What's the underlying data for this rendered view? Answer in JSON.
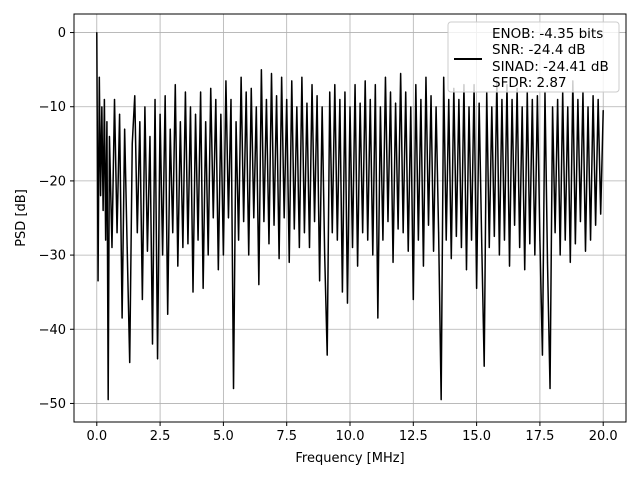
{
  "chart_data": {
    "type": "line",
    "xlabel": "Frequency [MHz]",
    "ylabel": "PSD [dB]",
    "xlim": [
      -0.9,
      20.9
    ],
    "ylim": [
      -52.5,
      2.5
    ],
    "x_ticks": [
      0.0,
      2.5,
      5.0,
      7.5,
      10.0,
      12.5,
      15.0,
      17.5,
      20.0
    ],
    "x_tick_labels": [
      "0.0",
      "2.5",
      "5.0",
      "7.5",
      "10.0",
      "12.5",
      "15.0",
      "17.5",
      "20.0"
    ],
    "y_ticks": [
      0,
      -10,
      -20,
      -30,
      -40,
      -50
    ],
    "y_tick_labels": [
      "0",
      "−10",
      "−20",
      "−30",
      "−40",
      "−50"
    ],
    "grid": true,
    "legend_position": "top-right",
    "series": [
      {
        "legend_lines": [
          "ENOB: -4.35 bits",
          "SNR: -24.4 dB",
          "SINAD: -24.41 dB",
          "SFDR: 2.87"
        ],
        "color": "#000000",
        "description": "noise-like PSD from 0 to 20 MHz, peak 0 dB at 0 MHz, mostly between -30 and -5 dB",
        "points": [
          [
            0.0,
            0.0
          ],
          [
            0.05,
            -33.5
          ],
          [
            0.1,
            -6.0
          ],
          [
            0.15,
            -22.0
          ],
          [
            0.2,
            -10.0
          ],
          [
            0.25,
            -24.0
          ],
          [
            0.3,
            -9.0
          ],
          [
            0.35,
            -28.0
          ],
          [
            0.4,
            -12.0
          ],
          [
            0.45,
            -49.5
          ],
          [
            0.5,
            -14.0
          ],
          [
            0.6,
            -29.0
          ],
          [
            0.7,
            -9.0
          ],
          [
            0.8,
            -27.0
          ],
          [
            0.9,
            -11.0
          ],
          [
            1.0,
            -38.5
          ],
          [
            1.1,
            -13.0
          ],
          [
            1.2,
            -29.0
          ],
          [
            1.3,
            -44.5
          ],
          [
            1.4,
            -15.0
          ],
          [
            1.5,
            -8.5
          ],
          [
            1.6,
            -27.0
          ],
          [
            1.7,
            -12.0
          ],
          [
            1.8,
            -36.0
          ],
          [
            1.9,
            -10.0
          ],
          [
            2.0,
            -29.5
          ],
          [
            2.1,
            -14.0
          ],
          [
            2.2,
            -42.0
          ],
          [
            2.3,
            -9.0
          ],
          [
            2.4,
            -44.0
          ],
          [
            2.5,
            -11.0
          ],
          [
            2.6,
            -30.0
          ],
          [
            2.7,
            -8.5
          ],
          [
            2.8,
            -38.0
          ],
          [
            2.9,
            -13.0
          ],
          [
            3.0,
            -27.0
          ],
          [
            3.1,
            -7.0
          ],
          [
            3.2,
            -31.5
          ],
          [
            3.3,
            -12.0
          ],
          [
            3.4,
            -29.0
          ],
          [
            3.5,
            -8.0
          ],
          [
            3.6,
            -28.5
          ],
          [
            3.7,
            -10.0
          ],
          [
            3.8,
            -35.0
          ],
          [
            3.9,
            -11.0
          ],
          [
            4.0,
            -28.0
          ],
          [
            4.1,
            -8.0
          ],
          [
            4.2,
            -34.5
          ],
          [
            4.3,
            -12.0
          ],
          [
            4.4,
            -30.0
          ],
          [
            4.5,
            -7.5
          ],
          [
            4.6,
            -25.0
          ],
          [
            4.7,
            -9.0
          ],
          [
            4.8,
            -32.0
          ],
          [
            4.9,
            -11.0
          ],
          [
            5.0,
            -30.0
          ],
          [
            5.1,
            -6.5
          ],
          [
            5.2,
            -25.0
          ],
          [
            5.3,
            -9.0
          ],
          [
            5.4,
            -48.0
          ],
          [
            5.5,
            -12.0
          ],
          [
            5.6,
            -28.0
          ],
          [
            5.7,
            -6.0
          ],
          [
            5.8,
            -25.5
          ],
          [
            5.9,
            -8.0
          ],
          [
            6.0,
            -30.0
          ],
          [
            6.1,
            -7.5
          ],
          [
            6.2,
            -25.0
          ],
          [
            6.3,
            -10.0
          ],
          [
            6.4,
            -34.0
          ],
          [
            6.5,
            -5.0
          ],
          [
            6.6,
            -25.5
          ],
          [
            6.7,
            -9.0
          ],
          [
            6.8,
            -28.5
          ],
          [
            6.9,
            -5.5
          ],
          [
            7.0,
            -26.0
          ],
          [
            7.1,
            -8.5
          ],
          [
            7.2,
            -30.5
          ],
          [
            7.3,
            -6.0
          ],
          [
            7.4,
            -25.0
          ],
          [
            7.5,
            -9.0
          ],
          [
            7.6,
            -31.0
          ],
          [
            7.7,
            -6.5
          ],
          [
            7.8,
            -26.5
          ],
          [
            7.9,
            -10.0
          ],
          [
            8.0,
            -29.0
          ],
          [
            8.1,
            -6.0
          ],
          [
            8.2,
            -27.0
          ],
          [
            8.3,
            -9.5
          ],
          [
            8.4,
            -29.0
          ],
          [
            8.5,
            -7.0
          ],
          [
            8.6,
            -25.5
          ],
          [
            8.7,
            -8.5
          ],
          [
            8.8,
            -33.5
          ],
          [
            8.9,
            -10.0
          ],
          [
            9.0,
            -30.0
          ],
          [
            9.1,
            -43.5
          ],
          [
            9.2,
            -8.0
          ],
          [
            9.3,
            -27.0
          ],
          [
            9.4,
            -7.0
          ],
          [
            9.5,
            -28.0
          ],
          [
            9.6,
            -9.0
          ],
          [
            9.7,
            -35.0
          ],
          [
            9.8,
            -8.0
          ],
          [
            9.9,
            -36.5
          ],
          [
            10.0,
            -10.0
          ],
          [
            10.1,
            -29.0
          ],
          [
            10.2,
            -7.0
          ],
          [
            10.3,
            -31.5
          ],
          [
            10.4,
            -9.5
          ],
          [
            10.5,
            -27.0
          ],
          [
            10.6,
            -6.5
          ],
          [
            10.7,
            -28.0
          ],
          [
            10.8,
            -9.0
          ],
          [
            10.9,
            -30.0
          ],
          [
            11.0,
            -7.0
          ],
          [
            11.1,
            -38.5
          ],
          [
            11.2,
            -10.0
          ],
          [
            11.3,
            -28.0
          ],
          [
            11.4,
            -6.0
          ],
          [
            11.5,
            -25.5
          ],
          [
            11.6,
            -8.0
          ],
          [
            11.7,
            -31.0
          ],
          [
            11.8,
            -9.5
          ],
          [
            11.9,
            -26.5
          ],
          [
            12.0,
            -5.5
          ],
          [
            12.1,
            -27.0
          ],
          [
            12.2,
            -8.0
          ],
          [
            12.3,
            -29.5
          ],
          [
            12.4,
            -10.0
          ],
          [
            12.5,
            -36.0
          ],
          [
            12.6,
            -7.0
          ],
          [
            12.7,
            -28.0
          ],
          [
            12.8,
            -9.0
          ],
          [
            12.9,
            -31.5
          ],
          [
            13.0,
            -6.0
          ],
          [
            13.1,
            -26.0
          ],
          [
            13.2,
            -8.5
          ],
          [
            13.3,
            -29.5
          ],
          [
            13.4,
            -10.0
          ],
          [
            13.5,
            -27.0
          ],
          [
            13.6,
            -49.5
          ],
          [
            13.7,
            -6.0
          ],
          [
            13.8,
            -28.0
          ],
          [
            13.9,
            -9.0
          ],
          [
            14.0,
            -30.5
          ],
          [
            14.1,
            -7.5
          ],
          [
            14.2,
            -27.5
          ],
          [
            14.3,
            -9.0
          ],
          [
            14.4,
            -29.0
          ],
          [
            14.5,
            -7.0
          ],
          [
            14.6,
            -32.0
          ],
          [
            14.7,
            -10.0
          ],
          [
            14.8,
            -28.0
          ],
          [
            14.9,
            -7.0
          ],
          [
            15.0,
            -34.5
          ],
          [
            15.1,
            -9.5
          ],
          [
            15.2,
            -28.0
          ],
          [
            15.3,
            -45.0
          ],
          [
            15.4,
            -8.0
          ],
          [
            15.5,
            -29.0
          ],
          [
            15.6,
            -10.0
          ],
          [
            15.7,
            -27.5
          ],
          [
            15.8,
            -6.5
          ],
          [
            15.9,
            -30.0
          ],
          [
            16.0,
            -9.0
          ],
          [
            16.1,
            -28.0
          ],
          [
            16.2,
            -7.0
          ],
          [
            16.3,
            -31.5
          ],
          [
            16.4,
            -9.0
          ],
          [
            16.5,
            -26.0
          ],
          [
            16.6,
            -7.5
          ],
          [
            16.7,
            -29.0
          ],
          [
            16.8,
            -10.0
          ],
          [
            16.9,
            -32.0
          ],
          [
            17.0,
            -8.0
          ],
          [
            17.1,
            -28.5
          ],
          [
            17.2,
            -9.0
          ],
          [
            17.3,
            -30.0
          ],
          [
            17.4,
            -8.5
          ],
          [
            17.5,
            -28.0
          ],
          [
            17.6,
            -43.5
          ],
          [
            17.7,
            -8.0
          ],
          [
            17.8,
            -31.0
          ],
          [
            17.9,
            -48.0
          ],
          [
            18.0,
            -10.0
          ],
          [
            18.1,
            -27.0
          ],
          [
            18.2,
            -9.0
          ],
          [
            18.3,
            -30.0
          ],
          [
            18.4,
            -8.0
          ],
          [
            18.5,
            -28.0
          ],
          [
            18.6,
            -10.0
          ],
          [
            18.7,
            -31.0
          ],
          [
            18.8,
            -6.5
          ],
          [
            18.9,
            -28.5
          ],
          [
            19.0,
            -9.0
          ],
          [
            19.1,
            -25.5
          ],
          [
            19.2,
            -8.0
          ],
          [
            19.3,
            -29.5
          ],
          [
            19.4,
            -10.0
          ],
          [
            19.5,
            -28.0
          ],
          [
            19.6,
            -8.5
          ],
          [
            19.7,
            -26.0
          ],
          [
            19.8,
            -9.0
          ],
          [
            19.9,
            -24.5
          ],
          [
            20.0,
            -10.5
          ]
        ]
      }
    ]
  }
}
